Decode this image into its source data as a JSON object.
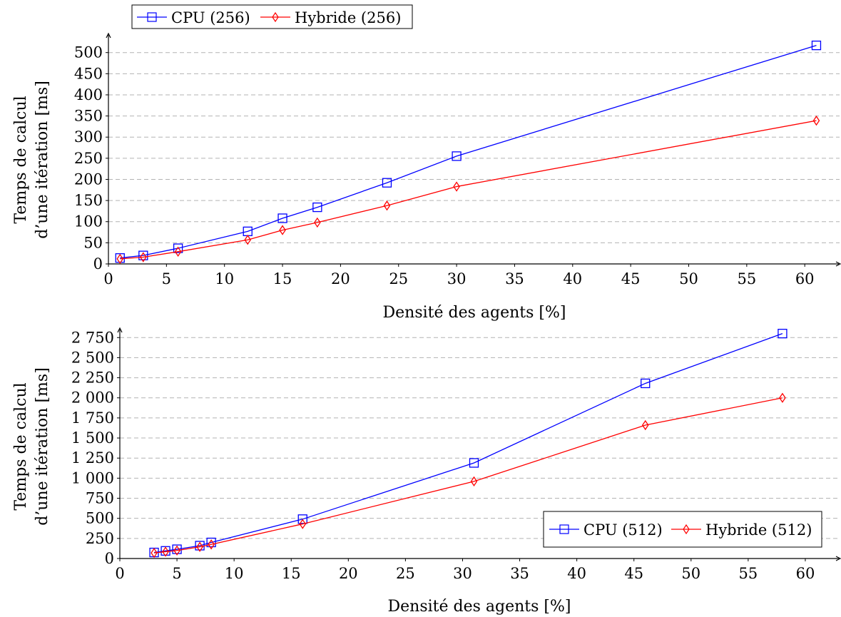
{
  "chart_data": [
    {
      "type": "line",
      "xlabel": "Densité des agents [%]",
      "ylabel": [
        "Temps de calcul",
        "d’une itération [ms]"
      ],
      "xlim": [
        0,
        63
      ],
      "ylim": [
        0,
        540
      ],
      "xticks": [
        0,
        5,
        10,
        15,
        20,
        25,
        30,
        35,
        40,
        45,
        50,
        55,
        60
      ],
      "yticks": [
        0,
        50,
        100,
        150,
        200,
        250,
        300,
        350,
        400,
        450,
        500
      ],
      "ytick_labels": [
        "0",
        "50",
        "100",
        "150",
        "200",
        "250",
        "300",
        "350",
        "400",
        "450",
        "500"
      ],
      "grid": "horizontal dashed",
      "legend_position": "above plot, left",
      "series": [
        {
          "name": "CPU (256)",
          "color": "#0000ff",
          "marker": "square",
          "x": [
            1,
            3,
            6,
            12,
            15,
            18,
            24,
            30,
            61
          ],
          "y": [
            14,
            20,
            37,
            77,
            108,
            134,
            192,
            255,
            517
          ]
        },
        {
          "name": "Hybride (256)",
          "color": "#ff0000",
          "marker": "diamond",
          "x": [
            1,
            3,
            6,
            12,
            15,
            18,
            24,
            30,
            61
          ],
          "y": [
            12,
            16,
            29,
            57,
            80,
            98,
            138,
            183,
            339
          ]
        }
      ]
    },
    {
      "type": "line",
      "xlabel": "Densité des agents [%]",
      "ylabel": [
        "Temps de calcul",
        "d’une itération [ms]"
      ],
      "xlim": [
        0,
        63
      ],
      "ylim": [
        0,
        2850
      ],
      "xticks": [
        0,
        5,
        10,
        15,
        20,
        25,
        30,
        35,
        40,
        45,
        50,
        55,
        60
      ],
      "yticks": [
        0,
        250,
        500,
        750,
        1000,
        1250,
        1500,
        1750,
        2000,
        2250,
        2500,
        2750
      ],
      "ytick_labels": [
        "0",
        "250",
        "500",
        "750",
        "1 000",
        "1 250",
        "1 500",
        "1 750",
        "2 000",
        "2 250",
        "2 500",
        "2 750"
      ],
      "grid": "horizontal dashed",
      "legend_position": "bottom-right",
      "series": [
        {
          "name": "CPU (512)",
          "color": "#0000ff",
          "marker": "square",
          "x": [
            3,
            4,
            5,
            7,
            8,
            16,
            31,
            46,
            58
          ],
          "y": [
            75,
            95,
            115,
            160,
            200,
            490,
            1190,
            2180,
            2800
          ]
        },
        {
          "name": "Hybride (512)",
          "color": "#ff0000",
          "marker": "diamond",
          "x": [
            3,
            4,
            5,
            7,
            8,
            16,
            31,
            46,
            58
          ],
          "y": [
            70,
            85,
            100,
            145,
            175,
            430,
            960,
            1660,
            2000
          ]
        }
      ]
    }
  ]
}
